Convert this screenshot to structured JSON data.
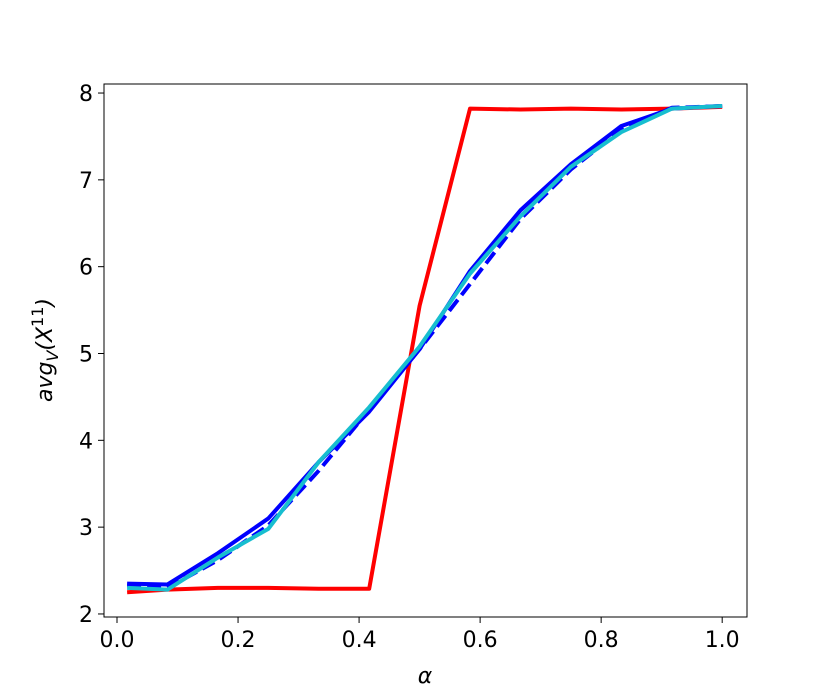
{
  "chart_data": {
    "type": "line",
    "xlabel": "α",
    "ylabel": {
      "base": "avg",
      "sub": "V",
      "mid": "(X",
      "sup": "11",
      "end": ")"
    },
    "x": [
      0.0167,
      0.0833,
      0.1667,
      0.25,
      0.3333,
      0.4167,
      0.5,
      0.5833,
      0.6667,
      0.75,
      0.8333,
      0.9167,
      1.0
    ],
    "series": [
      {
        "color": "#ff0000",
        "dash": false,
        "values": [
          2.25,
          2.28,
          2.3,
          2.3,
          2.29,
          2.29,
          5.55,
          7.82,
          7.81,
          7.82,
          7.81,
          7.82,
          7.84
        ]
      },
      {
        "color": "#0000ff",
        "dash": false,
        "values": [
          2.35,
          2.34,
          2.7,
          3.1,
          3.75,
          4.33,
          5.05,
          5.95,
          6.65,
          7.18,
          7.62,
          7.82,
          7.85
        ]
      },
      {
        "color": "#0000ff",
        "dash": true,
        "values": [
          2.33,
          2.3,
          2.62,
          3.02,
          3.65,
          4.35,
          5.05,
          5.8,
          6.55,
          7.12,
          7.58,
          7.83,
          7.85
        ]
      },
      {
        "color": "#17becf",
        "dash": false,
        "values": [
          2.3,
          2.28,
          2.65,
          2.98,
          3.75,
          4.38,
          5.08,
          5.92,
          6.58,
          7.15,
          7.55,
          7.82,
          7.85
        ]
      }
    ],
    "xlim": [
      -0.0215,
      1.041
    ],
    "ylim": [
      1.965,
      8.104
    ],
    "xticks": [
      {
        "value": 0.0,
        "label": "0.0"
      },
      0.2,
      0.4,
      0.6,
      0.8,
      {
        "value": 1.0,
        "label": "1.0"
      }
    ],
    "yticks": [
      2,
      3,
      4,
      5,
      6,
      7,
      8
    ],
    "grid": false
  }
}
